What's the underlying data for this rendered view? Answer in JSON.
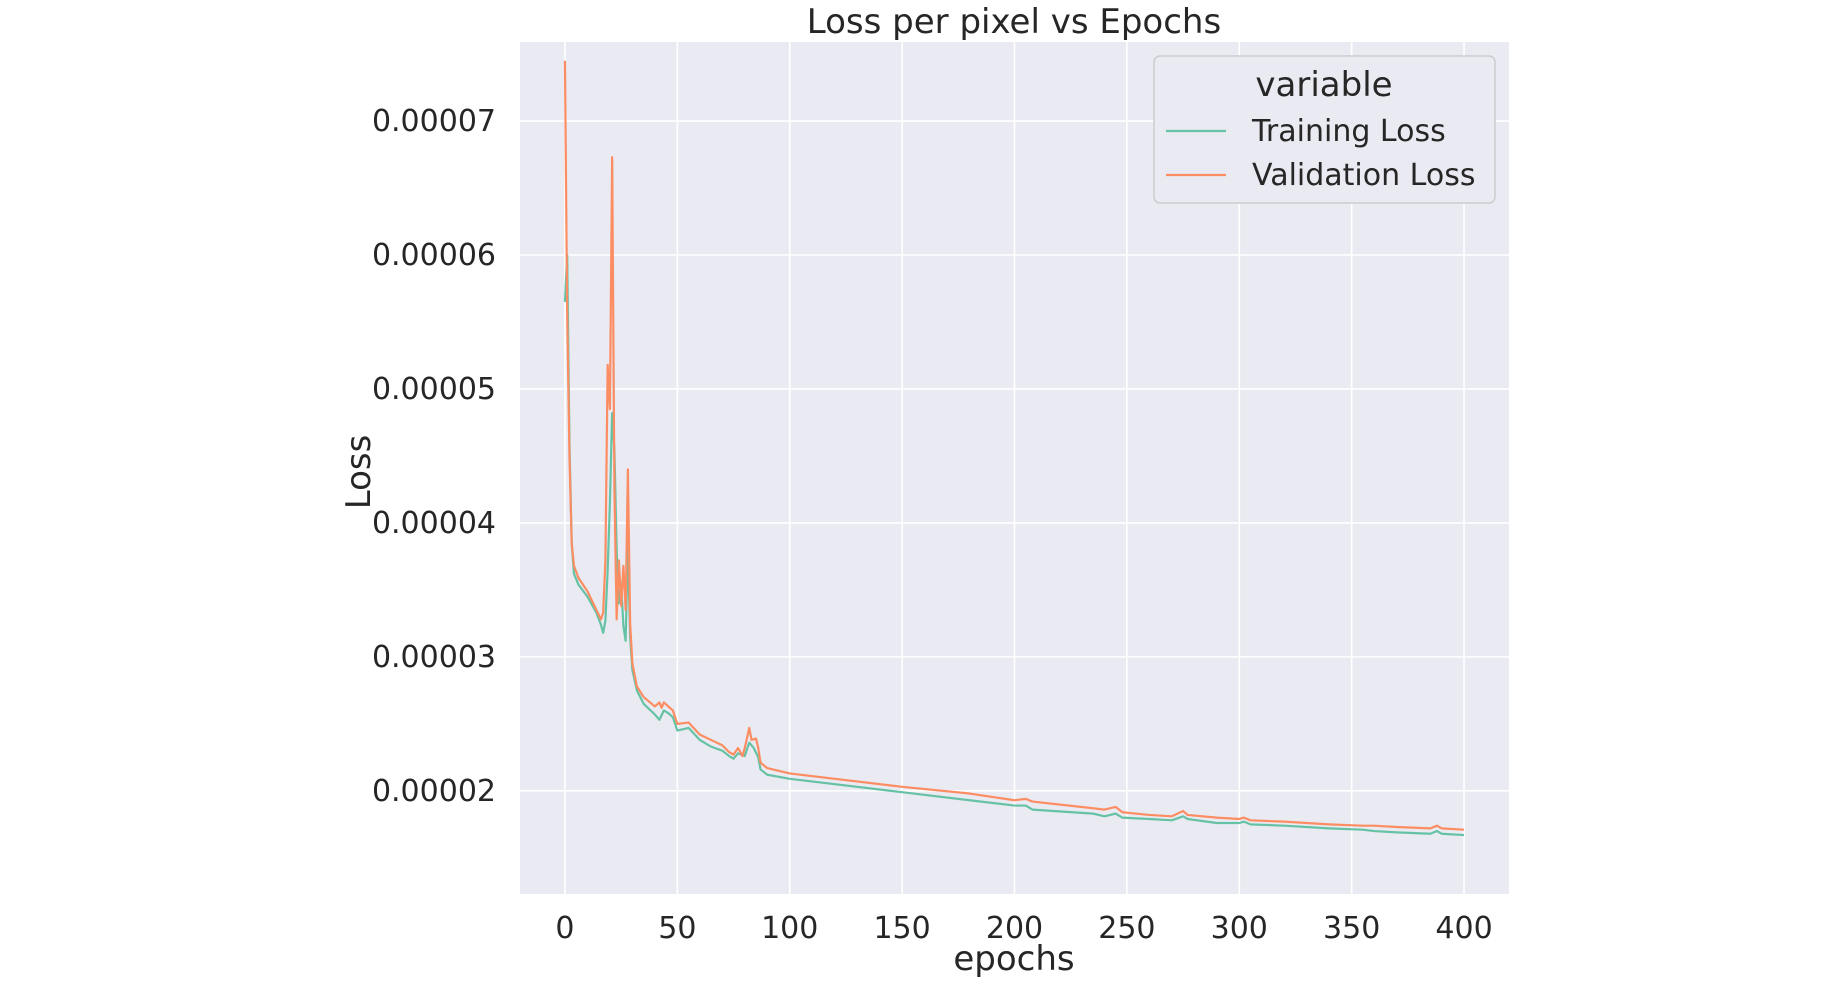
{
  "chart_data": {
    "type": "line",
    "title": "Loss per pixel vs Epochs",
    "xlabel": "epochs",
    "ylabel": "Loss",
    "xlim": [
      -20,
      420
    ],
    "ylim": [
      1.23e-05,
      7.59e-05
    ],
    "xticks": [
      0,
      50,
      100,
      150,
      200,
      250,
      300,
      350,
      400
    ],
    "xtick_labels": [
      "0",
      "50",
      "100",
      "150",
      "200",
      "250",
      "300",
      "350",
      "400"
    ],
    "yticks": [
      2e-05,
      3e-05,
      4e-05,
      5e-05,
      6e-05,
      7e-05
    ],
    "ytick_labels": [
      "0.00002",
      "0.00003",
      "0.00004",
      "0.00005",
      "0.00006",
      "0.00007"
    ],
    "grid": true,
    "background": "#EAEAF2",
    "legend": {
      "title": "variable",
      "position": "top-right",
      "entries": [
        "Training Loss",
        "Validation Loss"
      ]
    },
    "series": [
      {
        "name": "Training Loss",
        "color": "#66C2A5",
        "points": [
          [
            0,
            5.65e-05
          ],
          [
            1,
            6e-05
          ],
          [
            2,
            4.6e-05
          ],
          [
            3,
            3.85e-05
          ],
          [
            4,
            3.62e-05
          ],
          [
            6,
            3.54e-05
          ],
          [
            10,
            3.45e-05
          ],
          [
            14,
            3.33e-05
          ],
          [
            16,
            3.24e-05
          ],
          [
            17,
            3.18e-05
          ],
          [
            18,
            3.27e-05
          ],
          [
            19,
            3.65e-05
          ],
          [
            20,
            4.15e-05
          ],
          [
            21,
            4.82e-05
          ],
          [
            22,
            4.55e-05
          ],
          [
            23,
            3.8e-05
          ],
          [
            24,
            3.4e-05
          ],
          [
            25,
            3.55e-05
          ],
          [
            26,
            3.23e-05
          ],
          [
            27,
            3.12e-05
          ],
          [
            28,
            3.83e-05
          ],
          [
            29,
            3.15e-05
          ],
          [
            30,
            2.9e-05
          ],
          [
            32,
            2.75e-05
          ],
          [
            35,
            2.65e-05
          ],
          [
            40,
            2.57e-05
          ],
          [
            42,
            2.53e-05
          ],
          [
            44,
            2.6e-05
          ],
          [
            46,
            2.58e-05
          ],
          [
            48,
            2.55e-05
          ],
          [
            50,
            2.45e-05
          ],
          [
            55,
            2.47e-05
          ],
          [
            60,
            2.38e-05
          ],
          [
            65,
            2.33e-05
          ],
          [
            70,
            2.3e-05
          ],
          [
            73,
            2.26e-05
          ],
          [
            75,
            2.24e-05
          ],
          [
            77,
            2.28e-05
          ],
          [
            80,
            2.26e-05
          ],
          [
            82,
            2.36e-05
          ],
          [
            84,
            2.32e-05
          ],
          [
            86,
            2.25e-05
          ],
          [
            87,
            2.16e-05
          ],
          [
            90,
            2.12e-05
          ],
          [
            100,
            2.09e-05
          ],
          [
            150,
            1.99e-05
          ],
          [
            180,
            1.93e-05
          ],
          [
            200,
            1.89e-05
          ],
          [
            205,
            1.89e-05
          ],
          [
            208,
            1.86e-05
          ],
          [
            235,
            1.83e-05
          ],
          [
            240,
            1.81e-05
          ],
          [
            245,
            1.83e-05
          ],
          [
            248,
            1.8e-05
          ],
          [
            260,
            1.79e-05
          ],
          [
            270,
            1.78e-05
          ],
          [
            275,
            1.81e-05
          ],
          [
            277,
            1.79e-05
          ],
          [
            290,
            1.76e-05
          ],
          [
            300,
            1.76e-05
          ],
          [
            302,
            1.77e-05
          ],
          [
            305,
            1.75e-05
          ],
          [
            320,
            1.74e-05
          ],
          [
            330,
            1.73e-05
          ],
          [
            340,
            1.72e-05
          ],
          [
            355,
            1.71e-05
          ],
          [
            360,
            1.7e-05
          ],
          [
            370,
            1.69e-05
          ],
          [
            385,
            1.68e-05
          ],
          [
            388,
            1.7e-05
          ],
          [
            390,
            1.68e-05
          ],
          [
            400,
            1.67e-05
          ]
        ]
      },
      {
        "name": "Validation Loss",
        "color": "#FC8D62",
        "points": [
          [
            0,
            7.45e-05
          ],
          [
            1,
            5.55e-05
          ],
          [
            2,
            4.5e-05
          ],
          [
            3,
            3.85e-05
          ],
          [
            4,
            3.68e-05
          ],
          [
            6,
            3.59e-05
          ],
          [
            10,
            3.49e-05
          ],
          [
            14,
            3.35e-05
          ],
          [
            16,
            3.28e-05
          ],
          [
            17,
            3.33e-05
          ],
          [
            18,
            3.72e-05
          ],
          [
            19,
            5.18e-05
          ],
          [
            20,
            4.85e-05
          ],
          [
            21,
            6.73e-05
          ],
          [
            22,
            4.25e-05
          ],
          [
            23,
            3.28e-05
          ],
          [
            24,
            3.72e-05
          ],
          [
            25,
            3.38e-05
          ],
          [
            26,
            3.68e-05
          ],
          [
            27,
            3.35e-05
          ],
          [
            28,
            4.4e-05
          ],
          [
            29,
            3.25e-05
          ],
          [
            30,
            2.95e-05
          ],
          [
            32,
            2.78e-05
          ],
          [
            35,
            2.7e-05
          ],
          [
            40,
            2.63e-05
          ],
          [
            42,
            2.66e-05
          ],
          [
            43,
            2.62e-05
          ],
          [
            44,
            2.66e-05
          ],
          [
            46,
            2.63e-05
          ],
          [
            48,
            2.6e-05
          ],
          [
            50,
            2.5e-05
          ],
          [
            55,
            2.51e-05
          ],
          [
            60,
            2.42e-05
          ],
          [
            65,
            2.38e-05
          ],
          [
            70,
            2.34e-05
          ],
          [
            73,
            2.29e-05
          ],
          [
            75,
            2.27e-05
          ],
          [
            77,
            2.32e-05
          ],
          [
            79,
            2.26e-05
          ],
          [
            80,
            2.32e-05
          ],
          [
            82,
            2.47e-05
          ],
          [
            83,
            2.38e-05
          ],
          [
            85,
            2.39e-05
          ],
          [
            86,
            2.32e-05
          ],
          [
            87,
            2.21e-05
          ],
          [
            90,
            2.17e-05
          ],
          [
            100,
            2.13e-05
          ],
          [
            150,
            2.03e-05
          ],
          [
            180,
            1.98e-05
          ],
          [
            200,
            1.93e-05
          ],
          [
            205,
            1.94e-05
          ],
          [
            208,
            1.92e-05
          ],
          [
            235,
            1.87e-05
          ],
          [
            240,
            1.86e-05
          ],
          [
            245,
            1.88e-05
          ],
          [
            248,
            1.84e-05
          ],
          [
            260,
            1.82e-05
          ],
          [
            270,
            1.81e-05
          ],
          [
            275,
            1.85e-05
          ],
          [
            277,
            1.82e-05
          ],
          [
            290,
            1.8e-05
          ],
          [
            300,
            1.79e-05
          ],
          [
            302,
            1.8e-05
          ],
          [
            305,
            1.78e-05
          ],
          [
            320,
            1.77e-05
          ],
          [
            330,
            1.76e-05
          ],
          [
            340,
            1.75e-05
          ],
          [
            355,
            1.74e-05
          ],
          [
            360,
            1.74e-05
          ],
          [
            370,
            1.73e-05
          ],
          [
            385,
            1.72e-05
          ],
          [
            388,
            1.74e-05
          ],
          [
            390,
            1.72e-05
          ],
          [
            400,
            1.71e-05
          ]
        ]
      }
    ]
  }
}
